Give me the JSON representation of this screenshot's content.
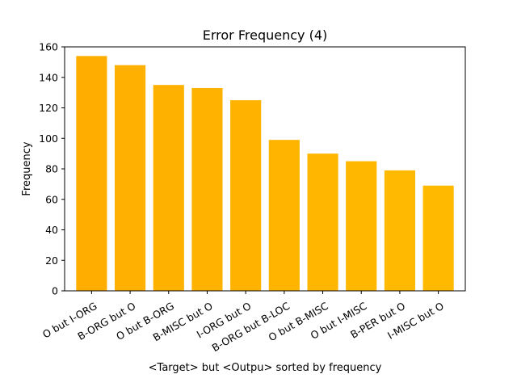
{
  "chart_data": {
    "type": "bar",
    "title": "Error Frequency (4)",
    "xlabel": "<Target> but <Outpu> sorted by frequency",
    "ylabel": "Frequency",
    "ylim": [
      0,
      160
    ],
    "yticks": [
      0,
      20,
      40,
      60,
      80,
      100,
      120,
      140,
      160
    ],
    "grid": false,
    "legend": "none",
    "categories": [
      "O but I-ORG",
      "B-ORG but O",
      "O but B-ORG",
      "B-MISC but O",
      "I-ORG but O",
      "B-ORG but B-LOC",
      "O but B-MISC",
      "O but I-MISC",
      "B-PER but O",
      "I-MISC but O"
    ],
    "values": [
      154,
      148,
      135,
      133,
      125,
      99,
      90,
      85,
      79,
      69
    ],
    "colors": [
      "#FFAE00",
      "#FFB000",
      "#FFB100",
      "#FFB200",
      "#FFB300",
      "#FFB500",
      "#FFB600",
      "#FFB700",
      "#FFB900",
      "#FFBA00"
    ]
  }
}
